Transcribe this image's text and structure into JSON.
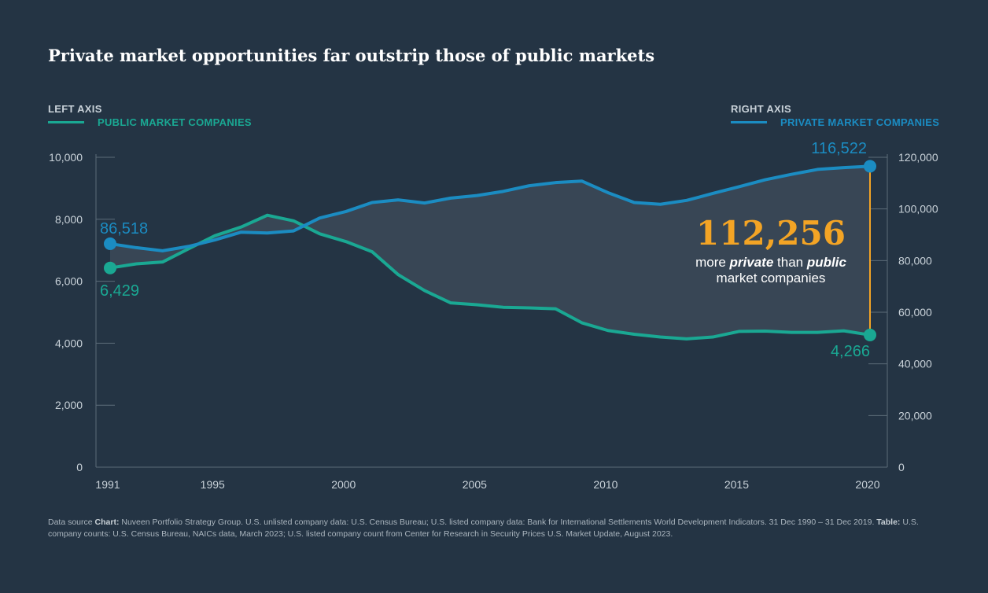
{
  "title": "Private market opportunities far outstrip those of public markets",
  "legend": {
    "left": {
      "axis": "LEFT AXIS",
      "series": "PUBLIC MARKET COMPANIES",
      "color": "#1aa893"
    },
    "right": {
      "axis": "RIGHT AXIS",
      "series": "PRIVATE MARKET COMPANIES",
      "color": "#1b8cc2"
    }
  },
  "chart_data": {
    "type": "line",
    "title": "Private market opportunities far outstrip those of public markets",
    "x": [
      1991,
      1992,
      1993,
      1994,
      1995,
      1996,
      1997,
      1998,
      1999,
      2000,
      2001,
      2002,
      2003,
      2004,
      2005,
      2006,
      2007,
      2008,
      2009,
      2010,
      2011,
      2012,
      2013,
      2014,
      2015,
      2016,
      2017,
      2018,
      2019,
      2020
    ],
    "x_ticks": [
      "1991",
      "1995",
      "2000",
      "2005",
      "2010",
      "2015",
      "2020"
    ],
    "xlim": [
      1991,
      2020
    ],
    "series": [
      {
        "name": "PUBLIC MARKET COMPANIES",
        "axis": "left",
        "color": "#1aa893",
        "values": [
          6429,
          6560,
          6620,
          7050,
          7470,
          7750,
          8130,
          7950,
          7530,
          7280,
          6950,
          6210,
          5700,
          5300,
          5240,
          5160,
          5140,
          5110,
          4660,
          4410,
          4290,
          4200,
          4140,
          4200,
          4380,
          4390,
          4350,
          4350,
          4400,
          4266
        ]
      },
      {
        "name": "PRIVATE MARKET COMPANIES",
        "axis": "right",
        "color": "#1b8cc2",
        "values": [
          86518,
          85000,
          83800,
          85500,
          88000,
          91000,
          90700,
          91500,
          96500,
          99000,
          102500,
          103500,
          102300,
          104200,
          105200,
          106800,
          109000,
          110200,
          110800,
          106300,
          102500,
          101800,
          103300,
          106000,
          108600,
          111300,
          113400,
          115300,
          116000,
          116522
        ]
      }
    ],
    "left_axis": {
      "ylim": [
        0,
        10000
      ],
      "ticks": [
        "0",
        "2,000",
        "4,000",
        "6,000",
        "8,000",
        "10,000"
      ]
    },
    "right_axis": {
      "ylim": [
        0,
        120000
      ],
      "ticks": [
        "0",
        "20,000",
        "40,000",
        "60,000",
        "80,000",
        "100,000",
        "120,000"
      ]
    },
    "annotations": {
      "public_start": "6,429",
      "private_start": "86,518",
      "public_end": "4,266",
      "private_end": "116,522",
      "difference": "112,256",
      "difference_line1_a": "more ",
      "difference_line1_b": "private",
      "difference_line1_c": " than ",
      "difference_line1_d": "public",
      "difference_line2": "market companies"
    },
    "highlight_color": "#f3a425"
  },
  "footnote": {
    "prefix": "Data source ",
    "chart_label": "Chart:",
    "chart_text": " Nuveen Portfolio Strategy Group. U.S. unlisted company data: U.S. Census Bureau; U.S. listed company data: Bank for International Settlements World Development Indicators. 31 Dec 1990 – 31 Dec 2019. ",
    "table_label": "Table:",
    "table_text": " U.S. company counts: U.S. Census Bureau, NAICs data, March 2023; U.S. listed company count from Center for Research in Security Prices U.S. Market Update, August 2023."
  }
}
